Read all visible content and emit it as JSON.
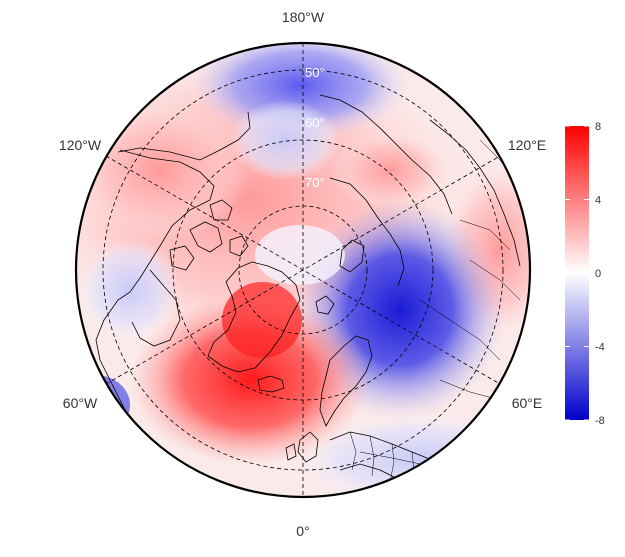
{
  "map": {
    "projection": "north-polar-stereographic",
    "field_units_hidden": true,
    "longitude_labels": {
      "top": "180°W",
      "upper_left": "120°W",
      "upper_right": "120°E",
      "lower_left": "60°W",
      "lower_right": "60°E",
      "bottom": "0°"
    },
    "latitude_labels": [
      "50°",
      "60°",
      "70°"
    ]
  },
  "colorbar": {
    "ticks": [
      "8",
      "4",
      "0",
      "-4",
      "-8"
    ],
    "range": [
      -8,
      8
    ],
    "colors": {
      "high": "#ff0000",
      "mid": "#ffffff",
      "low": "#0000cc"
    }
  },
  "colors": {
    "outline": "#000000",
    "grid": "#000000",
    "coast": "#000000"
  }
}
